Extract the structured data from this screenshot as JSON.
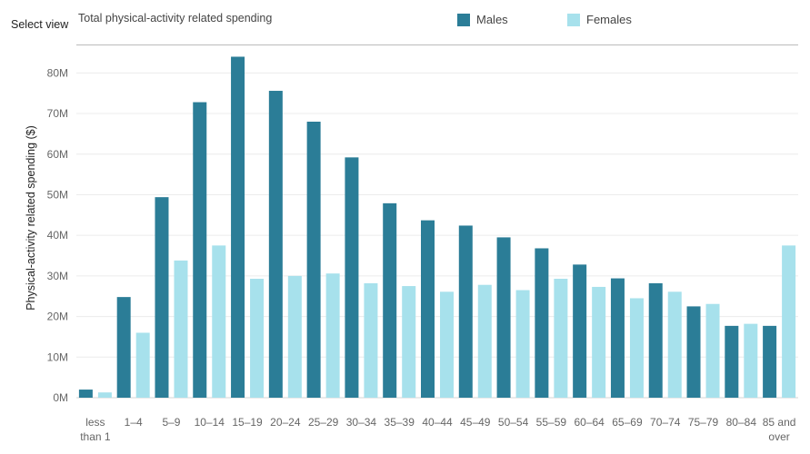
{
  "header": {
    "select_view_label": "Select view",
    "view_option": "Total physical-activity related spending"
  },
  "colors": {
    "males": "#2b7d97",
    "females": "#a7e1ec",
    "grid": "#ececec",
    "axis": "#9a9a9a",
    "tick_text": "#666666"
  },
  "chart_data": {
    "type": "bar",
    "title": "",
    "xlabel": "",
    "ylabel": "Physical-activity related spending ($)",
    "ylim": [
      0,
      85000000
    ],
    "yticks": [
      0,
      10000000,
      20000000,
      30000000,
      40000000,
      50000000,
      60000000,
      70000000,
      80000000
    ],
    "ytick_labels": [
      "0M",
      "10M",
      "20M",
      "30M",
      "40M",
      "50M",
      "60M",
      "70M",
      "80M"
    ],
    "legend_position": "top",
    "grid": true,
    "categories": [
      "less than 1",
      "1–4",
      "5–9",
      "10–14",
      "15–19",
      "20–24",
      "25–29",
      "30–34",
      "35–39",
      "40–44",
      "45–49",
      "50–54",
      "55–59",
      "60–64",
      "65–69",
      "70–74",
      "75–79",
      "80–84",
      "85 and over"
    ],
    "category_labels": [
      [
        "less",
        "than 1"
      ],
      [
        "1–4"
      ],
      [
        "5–9"
      ],
      [
        "10–14"
      ],
      [
        "15–19"
      ],
      [
        "20–24"
      ],
      [
        "25–29"
      ],
      [
        "30–34"
      ],
      [
        "35–39"
      ],
      [
        "40–44"
      ],
      [
        "45–49"
      ],
      [
        "50–54"
      ],
      [
        "55–59"
      ],
      [
        "60–64"
      ],
      [
        "65–69"
      ],
      [
        "70–74"
      ],
      [
        "75–79"
      ],
      [
        "80–84"
      ],
      [
        "85 and",
        "over"
      ]
    ],
    "series": [
      {
        "name": "Males",
        "values": [
          2000000,
          24800000,
          49400000,
          72800000,
          84000000,
          75600000,
          68000000,
          59200000,
          47900000,
          43700000,
          42400000,
          39500000,
          36800000,
          32800000,
          29400000,
          28200000,
          22500000,
          17700000,
          17700000
        ]
      },
      {
        "name": "Females",
        "values": [
          1300000,
          16000000,
          33800000,
          37500000,
          29300000,
          30000000,
          30600000,
          28200000,
          27500000,
          26100000,
          27800000,
          26500000,
          29300000,
          27300000,
          24500000,
          26100000,
          23100000,
          18200000,
          37500000
        ]
      }
    ]
  }
}
